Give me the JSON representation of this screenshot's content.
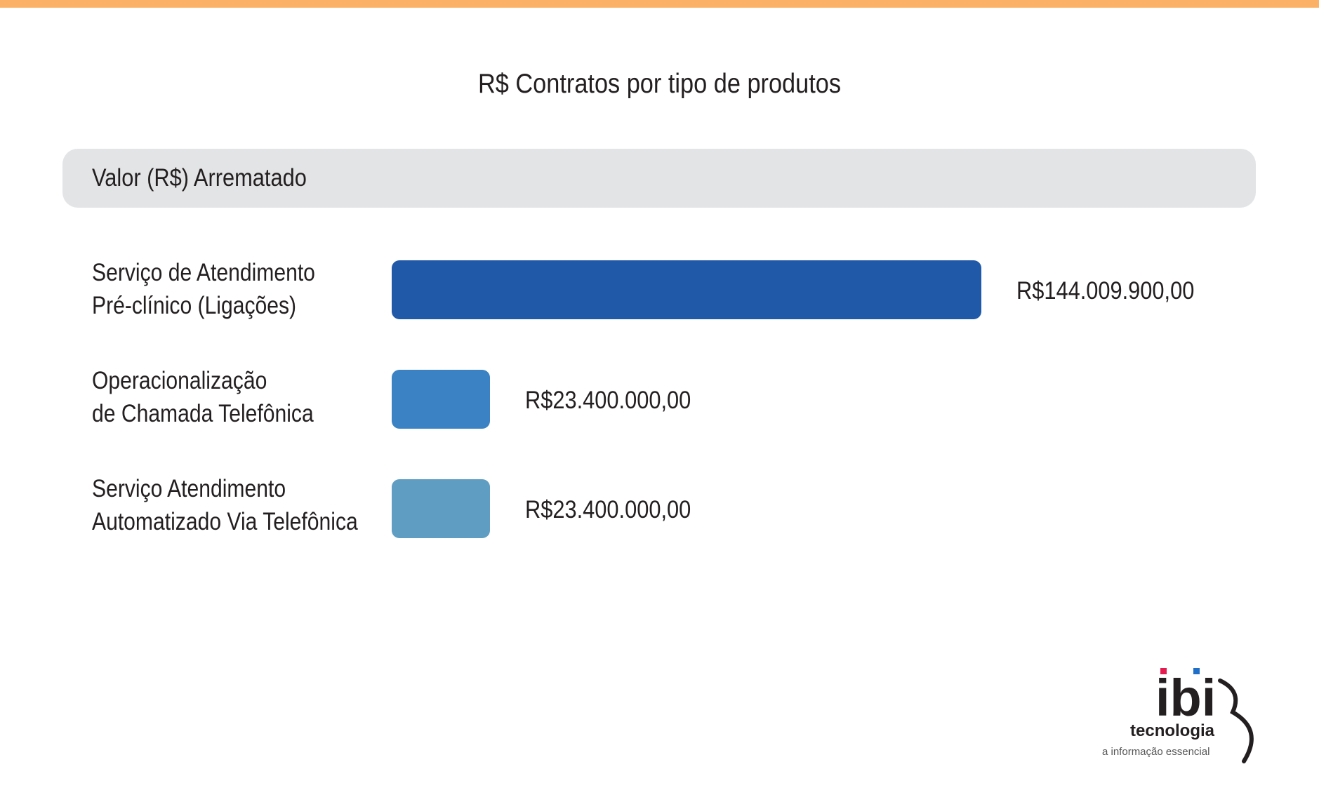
{
  "chart_data": {
    "type": "bar",
    "orientation": "horizontal",
    "title": "R$ Contratos por tipo de produtos",
    "series": [
      {
        "name": "Valor (R$) Arrematado",
        "values": [
          144009900,
          23400000,
          23400000
        ]
      }
    ],
    "categories": [
      [
        "Serviço de Atendimento",
        "Pré-clínico (Ligações)"
      ],
      [
        "Operacionalização",
        "de Chamada Telefônica"
      ],
      [
        "Serviço Atendimento",
        "Automatizado Via Telefônica"
      ]
    ],
    "data_labels": [
      "R$144.009.900,00",
      "R$23.400.000,00",
      "R$23.400.000,00"
    ],
    "bar_colors": [
      "#2059a8",
      "#3b82c4",
      "#5f9dc3"
    ],
    "xlim": [
      0,
      144009900
    ],
    "grid": false,
    "legend": "none"
  },
  "colors": {
    "top_stripe": "#fbb267",
    "header_bg": "#e3e4e6",
    "text": "#231f20"
  },
  "logo": {
    "mark": "ibi",
    "word": "tecnologia",
    "tagline": "a informação essencial",
    "dot_colors": [
      "#e31b4e",
      "#1f6fc9"
    ]
  }
}
